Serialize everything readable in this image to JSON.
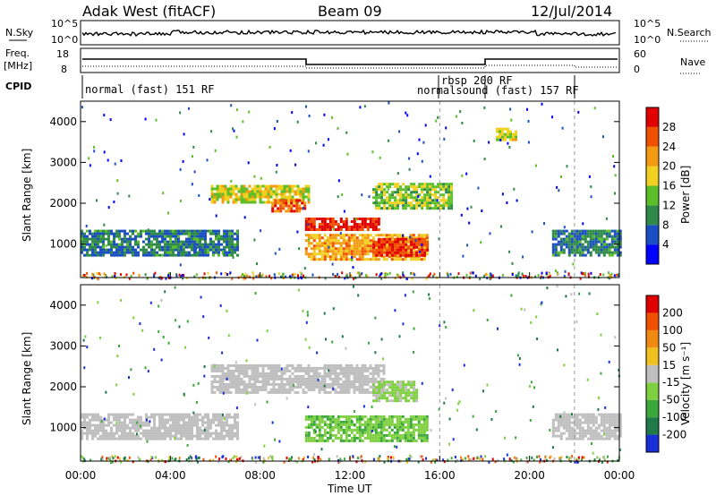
{
  "header": {
    "left": "Adak West (fitACF)",
    "center": "Beam 09",
    "right": "12/Jul/2014"
  },
  "top_panels": {
    "nsky_label": "N.Sky",
    "nsky_ticks": [
      "10^5",
      "10^0"
    ],
    "nsearch_label": "N.Search",
    "nsearch_ticks": [
      "10^5",
      "10^0"
    ],
    "freq_label_1": "Freq.",
    "freq_label_2": "[MHz]",
    "freq_ticks": [
      "18",
      "8"
    ],
    "nave_label": "Nave",
    "nave_ticks": [
      "60",
      "0"
    ],
    "cpid_label": "CPID",
    "cpid_modes": [
      "normal (fast) 151 RF",
      "rbsp 200 RF",
      "normalsound (fast) 157 RF"
    ]
  },
  "power_colorbar": {
    "label": "Power [dB]",
    "ticks": [
      "28",
      "24",
      "20",
      "16",
      "12",
      "8",
      "4"
    ],
    "colors": [
      "#0000ff",
      "#1a4ec2",
      "#2f8a4a",
      "#5cbf2a",
      "#f0d020",
      "#f39a10",
      "#f05000",
      "#e00000"
    ]
  },
  "velocity_colorbar": {
    "label": "Velocity [m s⁻¹]",
    "ticks": [
      "200",
      "100",
      "50",
      "15",
      "-15",
      "-50",
      "-100",
      "-200"
    ],
    "colors": [
      "#1a2ed8",
      "#1f7a4a",
      "#3ca83c",
      "#7fd040",
      "#bfbfbf",
      "#f0c020",
      "#f08a10",
      "#f05000",
      "#e00000"
    ]
  },
  "axes": {
    "ylabel": "Slant Range [km]",
    "xlabel": "Time UT",
    "xticks": [
      "00:00",
      "04:00",
      "08:00",
      "12:00",
      "16:00",
      "20:00",
      "00:00"
    ],
    "yticks": [
      "1000",
      "2000",
      "3000",
      "4000"
    ]
  },
  "chart_data": [
    {
      "type": "heatmap",
      "name": "Power",
      "xlabel": "Time UT",
      "ylabel": "Slant Range [km]",
      "xlim_hours": [
        0,
        24
      ],
      "ylim_km": [
        180,
        4500
      ],
      "colorbar_label": "Power [dB]",
      "colorbar_range": [
        0,
        30
      ],
      "regions": [
        {
          "t": [
            0.0,
            7.0
          ],
          "r": [
            750,
            1350
          ],
          "value": 8
        },
        {
          "t": [
            5.8,
            10.2
          ],
          "r": [
            2000,
            2450
          ],
          "value": 16
        },
        {
          "t": [
            8.5,
            10.0
          ],
          "r": [
            1800,
            2100
          ],
          "value": 24
        },
        {
          "t": [
            10.0,
            13.3
          ],
          "r": [
            1350,
            1650
          ],
          "value": 28
        },
        {
          "t": [
            10.0,
            15.5
          ],
          "r": [
            600,
            1250
          ],
          "value": 20
        },
        {
          "t": [
            13.0,
            15.5
          ],
          "r": [
            750,
            1150
          ],
          "value": 26
        },
        {
          "t": [
            13.0,
            16.5
          ],
          "r": [
            1850,
            2500
          ],
          "value": 14
        },
        {
          "t": [
            21.0,
            24.0
          ],
          "r": [
            750,
            1350
          ],
          "value": 8
        },
        {
          "t": [
            18.5,
            19.4
          ],
          "r": [
            3550,
            3850
          ],
          "value": 16
        }
      ]
    },
    {
      "type": "heatmap",
      "name": "Velocity",
      "xlabel": "Time UT",
      "ylabel": "Slant Range [km]",
      "xlim_hours": [
        0,
        24
      ],
      "ylim_km": [
        180,
        4500
      ],
      "colorbar_label": "Velocity [m s⁻¹]",
      "colorbar_range": [
        -200,
        200
      ],
      "regions": [
        {
          "t": [
            0.0,
            7.0
          ],
          "r": [
            750,
            1350
          ],
          "value": 0
        },
        {
          "t": [
            5.8,
            13.5
          ],
          "r": [
            1850,
            2550
          ],
          "value": 0
        },
        {
          "t": [
            10.0,
            15.5
          ],
          "r": [
            650,
            1300
          ],
          "value": -60
        },
        {
          "t": [
            13.0,
            15.0
          ],
          "r": [
            1650,
            2150
          ],
          "value": -30
        },
        {
          "t": [
            21.0,
            24.0
          ],
          "r": [
            750,
            1350
          ],
          "value": 0
        }
      ]
    }
  ]
}
